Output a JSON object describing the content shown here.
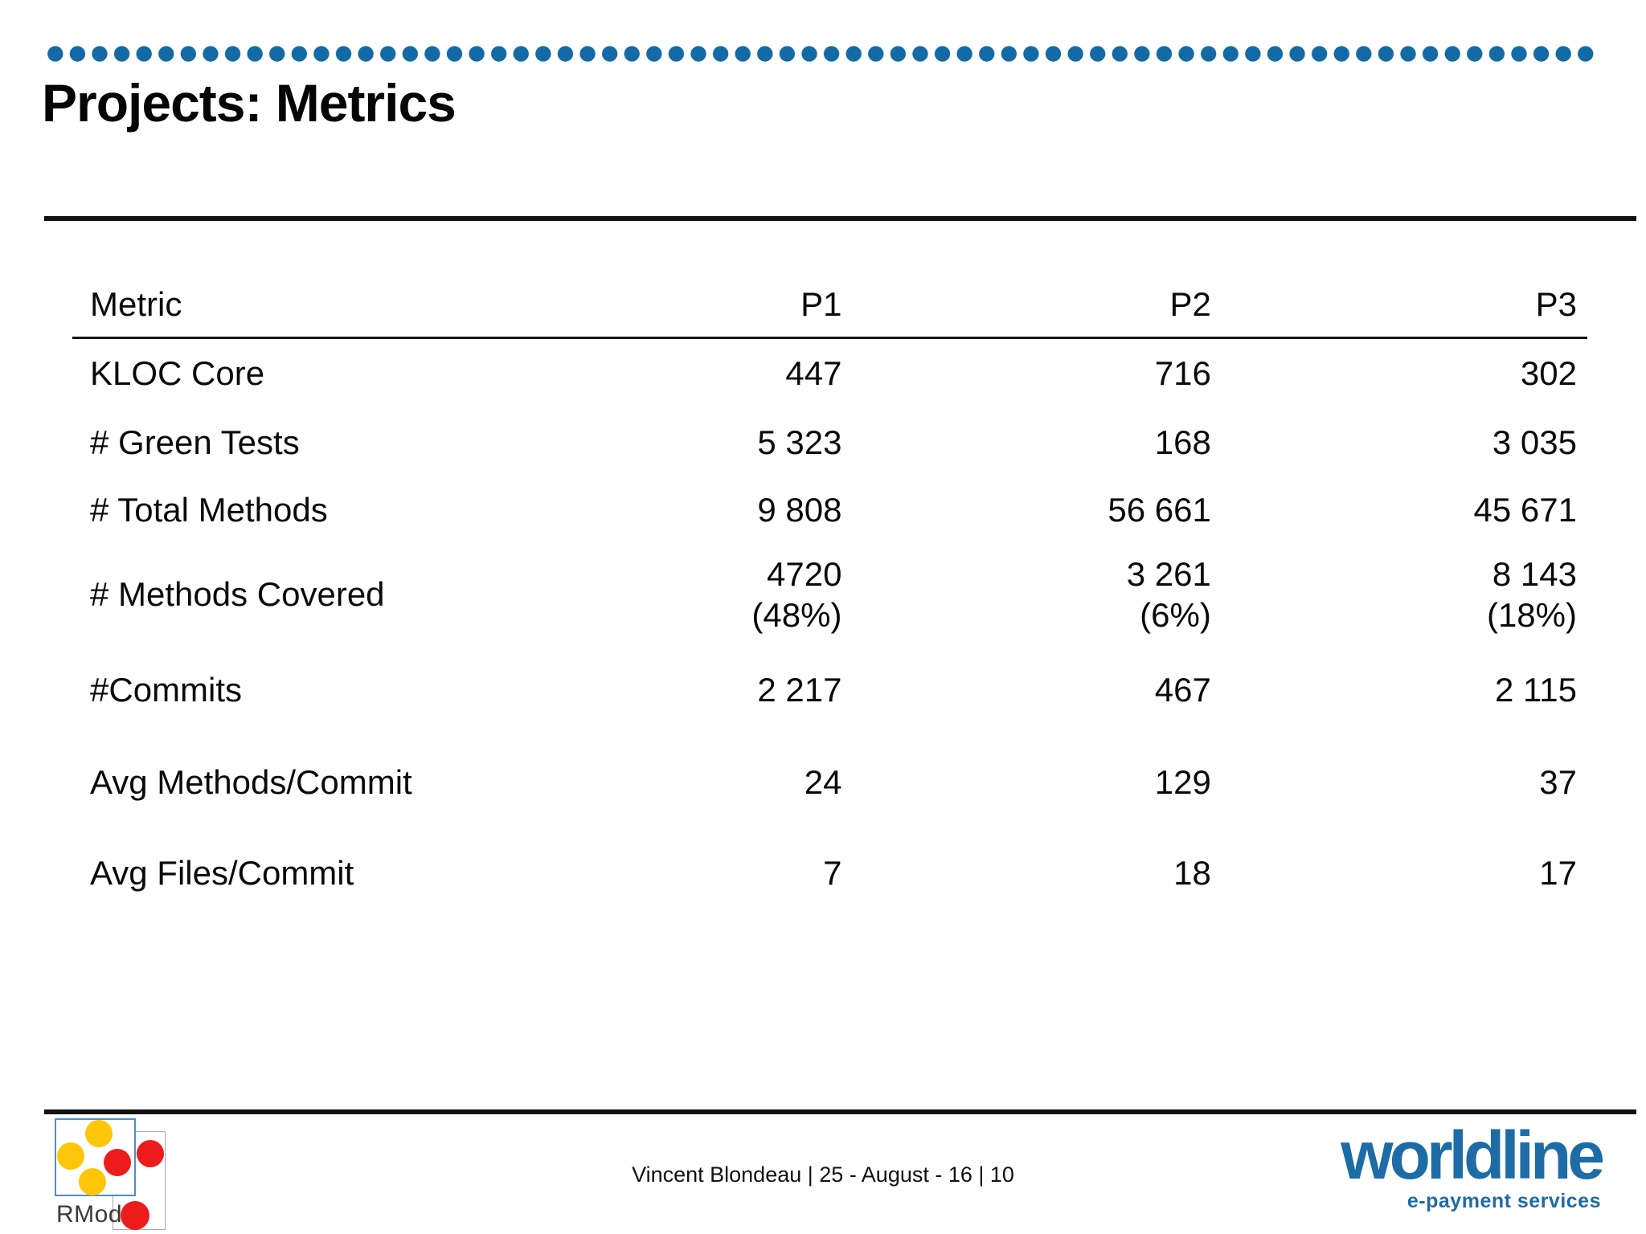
{
  "slide": {
    "title": "Projects: Metrics",
    "footer": "Vincent Blondeau | 25 - August - 16 | 10"
  },
  "table": {
    "columns": [
      "Metric",
      "P1",
      "P2",
      "P3"
    ],
    "rows": [
      {
        "label": "KLOC Core",
        "values": [
          "447",
          "716",
          "302"
        ]
      },
      {
        "label": "# Green Tests",
        "values": [
          "5 323",
          "168",
          "3 035"
        ]
      },
      {
        "label": "# Total Methods",
        "values": [
          "9 808",
          "56 661",
          "45 671"
        ]
      },
      {
        "label": "# Methods Covered",
        "values": [
          "4720\n(48%)",
          "3 261\n(6%)",
          "8 143\n(18%)"
        ]
      },
      {
        "label": "#Commits",
        "values": [
          "2 217",
          "467",
          "2 115"
        ]
      },
      {
        "label": "Avg Methods/Commit",
        "values": [
          "24",
          "129",
          "37"
        ]
      },
      {
        "label": "Avg Files/Commit",
        "values": [
          "7",
          "18",
          "17"
        ]
      }
    ]
  },
  "logos": {
    "rmod": {
      "label": "RMod"
    },
    "worldline": {
      "wordmark": "worldline",
      "tagline": "e-payment services"
    }
  },
  "colors": {
    "dotted_line_blue": "#146aa5",
    "worldline_blue": "#1d6ca6",
    "rmod_box_blue": "#4a8fd3",
    "rmod_yellow": "#fdc608",
    "rmod_red": "#ed1c1c",
    "rule_black": "#121212"
  }
}
